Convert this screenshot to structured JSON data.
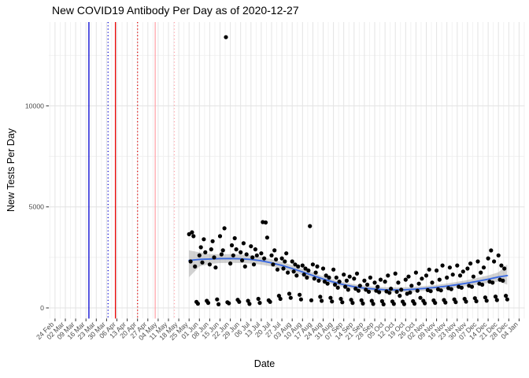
{
  "title": "New COVID19 Antibody Per Day as of 2020-12-27",
  "x_axis": {
    "label": "Date",
    "tick_labels": [
      "24 Feb",
      "02 Mar",
      "09 Mar",
      "16 Mar",
      "23 Mar",
      "30 Mar",
      "06 Apr",
      "13 Apr",
      "20 Apr",
      "27 Apr",
      "04 May",
      "11 May",
      "18 May",
      "25 May",
      "01 Jun",
      "08 Jun",
      "15 Jun",
      "22 Jun",
      "29 Jun",
      "06 Jul",
      "13 Jul",
      "20 Jul",
      "27 Jul",
      "03 Aug",
      "10 Aug",
      "17 Aug",
      "24 Aug",
      "31 Aug",
      "07 Sep",
      "14 Sep",
      "21 Sep",
      "28 Sep",
      "05 Oct",
      "12 Oct",
      "19 Oct",
      "26 Oct",
      "02 Nov",
      "09 Nov",
      "16 Nov",
      "23 Nov",
      "30 Nov",
      "07 Dec",
      "14 Dec",
      "21 Dec",
      "28 Dec",
      "04 Jan"
    ]
  },
  "y_axis": {
    "label": "New Tests Per Day",
    "tick_labels": [
      "0",
      "5000",
      "10000"
    ],
    "tick_values": [
      0,
      5000,
      10000
    ],
    "minor_tick_values": [
      2500,
      7500,
      12500
    ]
  },
  "colors": {
    "point": "#000000",
    "smooth_line": "#3B6AE1",
    "ribbon": "#7F7F7F",
    "grid_major": "#E3E3E3",
    "grid_minor": "#F0F0F0",
    "tick_label": "#4D4D4D",
    "tick_mark": "#333333",
    "vline_blue": "#0000D0",
    "vline_red": "#E60000",
    "vline_pink": "#FFA6AC"
  },
  "chart_data": {
    "type": "scatter",
    "title": "New COVID19 Antibody Per Day as of 2020-12-27",
    "xlabel": "Date",
    "ylabel": "New Tests Per Day",
    "x_range": [
      "2020-02-21",
      "2021-01-07"
    ],
    "ylim": [
      -500,
      14100
    ],
    "grid": true,
    "legend": false,
    "vlines": [
      {
        "date": "2020-03-18",
        "color_key": "vline_blue",
        "style": "solid"
      },
      {
        "date": "2020-03-31",
        "color_key": "vline_blue",
        "style": "dotted"
      },
      {
        "date": "2020-04-05",
        "color_key": "vline_red",
        "style": "solid"
      },
      {
        "date": "2020-04-20",
        "color_key": "vline_red",
        "style": "dotted"
      },
      {
        "date": "2020-05-02",
        "color_key": "vline_pink",
        "style": "solid"
      },
      {
        "date": "2020-05-15",
        "color_key": "vline_pink",
        "style": "dotted"
      }
    ],
    "points": {
      "start_date": "2020-05-25",
      "note": "daily values, Monday 2020-05-25 through Sunday 2020-12-27; weekends show low reporting; outlier 13400 on 2020-06-19",
      "daily_values": [
        3650,
        2300,
        3740,
        3550,
        2050,
        300,
        210,
        2600,
        3000,
        2250,
        3400,
        2750,
        350,
        250,
        2150,
        2900,
        3300,
        2500,
        2000,
        420,
        180,
        3550,
        2650,
        2850,
        3940,
        13400,
        280,
        230,
        2200,
        3100,
        2600,
        3450,
        2900,
        400,
        300,
        2750,
        2350,
        3200,
        2050,
        2650,
        350,
        200,
        3050,
        2500,
        2150,
        2900,
        2600,
        450,
        250,
        2700,
        4250,
        2450,
        4230,
        3480,
        380,
        300,
        2600,
        2150,
        2850,
        2400,
        1900,
        600,
        450,
        2450,
        1950,
        2300,
        2700,
        1750,
        700,
        500,
        2300,
        1800,
        2150,
        1600,
        2050,
        650,
        420,
        2100,
        1650,
        1950,
        1500,
        1850,
        4050,
        380,
        2150,
        1450,
        1750,
        2050,
        1350,
        550,
        350,
        1950,
        1300,
        1600,
        1200,
        1500,
        500,
        320,
        1900,
        1150,
        1500,
        1000,
        1300,
        450,
        280,
        1650,
        1050,
        1350,
        900,
        1550,
        400,
        250,
        1450,
        950,
        1700,
        850,
        1100,
        380,
        220,
        1350,
        900,
        1150,
        800,
        1500,
        350,
        200,
        1250,
        850,
        1050,
        780,
        1400,
        330,
        180,
        1300,
        820,
        1600,
        750,
        950,
        320,
        200,
        1700,
        800,
        1250,
        600,
        900,
        310,
        190,
        1400,
        700,
        1550,
        760,
        1100,
        330,
        210,
        1750,
        850,
        1200,
        500,
        1450,
        350,
        230,
        1600,
        880,
        1900,
        830,
        1250,
        370,
        250,
        1850,
        920,
        1400,
        870,
        2100,
        390,
        270,
        1500,
        980,
        2000,
        930,
        1650,
        420,
        290,
        2100,
        1050,
        1600,
        1000,
        1800,
        450,
        310,
        1950,
        1100,
        2200,
        1050,
        1550,
        480,
        330,
        2300,
        1200,
        1750,
        1150,
        2000,
        520,
        360,
        2450,
        1300,
        2845,
        1250,
        2300,
        560,
        390,
        2600,
        1400,
        2100,
        1350,
        1950,
        600,
        420
      ]
    },
    "smooth": {
      "method": "loess",
      "trend": [
        [
          "2020-05-25",
          2350,
          1520,
          2850
        ],
        [
          "2020-06-01",
          2400,
          2050,
          2750
        ],
        [
          "2020-06-08",
          2420,
          2180,
          2660
        ],
        [
          "2020-06-15",
          2440,
          2220,
          2660
        ],
        [
          "2020-06-22",
          2445,
          2230,
          2660
        ],
        [
          "2020-06-29",
          2430,
          2220,
          2640
        ],
        [
          "2020-07-06",
          2400,
          2200,
          2600
        ],
        [
          "2020-07-13",
          2330,
          2140,
          2520
        ],
        [
          "2020-07-20",
          2230,
          2050,
          2410
        ],
        [
          "2020-07-27",
          2100,
          1930,
          2270
        ],
        [
          "2020-08-03",
          1950,
          1790,
          2110
        ],
        [
          "2020-08-10",
          1780,
          1630,
          1930
        ],
        [
          "2020-08-17",
          1600,
          1460,
          1740
        ],
        [
          "2020-08-24",
          1430,
          1300,
          1560
        ],
        [
          "2020-08-31",
          1280,
          1160,
          1400
        ],
        [
          "2020-09-07",
          1150,
          1030,
          1270
        ],
        [
          "2020-09-14",
          1050,
          930,
          1170
        ],
        [
          "2020-09-21",
          980,
          860,
          1100
        ],
        [
          "2020-09-28",
          930,
          810,
          1050
        ],
        [
          "2020-10-05",
          900,
          780,
          1020
        ],
        [
          "2020-10-12",
          890,
          770,
          1010
        ],
        [
          "2020-10-19",
          900,
          780,
          1020
        ],
        [
          "2020-10-26",
          930,
          810,
          1050
        ],
        [
          "2020-11-02",
          970,
          850,
          1090
        ],
        [
          "2020-11-09",
          1020,
          900,
          1140
        ],
        [
          "2020-11-16",
          1080,
          950,
          1210
        ],
        [
          "2020-11-23",
          1150,
          1010,
          1290
        ],
        [
          "2020-11-30",
          1230,
          1080,
          1380
        ],
        [
          "2020-12-07",
          1320,
          1150,
          1490
        ],
        [
          "2020-12-14",
          1420,
          1230,
          1610
        ],
        [
          "2020-12-21",
          1530,
          1300,
          1760
        ],
        [
          "2020-12-27",
          1600,
          1150,
          2150
        ]
      ]
    }
  }
}
